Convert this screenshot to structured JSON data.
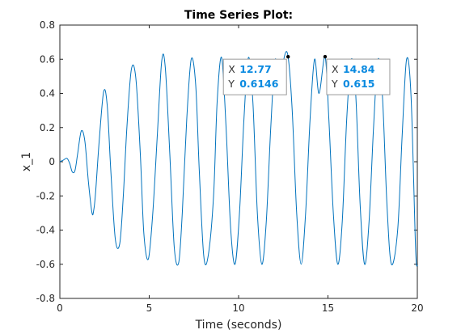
{
  "chart_data": {
    "type": "line",
    "title": "Time Series Plot:",
    "xlabel": "Time (seconds)",
    "ylabel": "x_1",
    "xlim": [
      0,
      20
    ],
    "ylim": [
      -0.8,
      0.8
    ],
    "grid": false,
    "x_ticks": [
      0,
      5,
      10,
      15,
      20
    ],
    "y_ticks": [
      -0.8,
      -0.6,
      -0.4,
      -0.2,
      0,
      0.2,
      0.4,
      0.6,
      0.8
    ],
    "series": [
      {
        "color": "#0072bd",
        "x": [
          0,
          0.2,
          0.4,
          0.55,
          0.7,
          0.85,
          1.0,
          1.2,
          1.4,
          1.6,
          1.8,
          1.9,
          2.0,
          2.2,
          2.45,
          2.65,
          2.85,
          3.1,
          3.35,
          3.55,
          3.75,
          4.0,
          4.25,
          4.5,
          4.7,
          4.95,
          5.2,
          5.45,
          5.7,
          5.9,
          6.15,
          6.4,
          6.65,
          6.85,
          7.1,
          7.35,
          7.6,
          7.8,
          8.05,
          8.3,
          8.6,
          8.8,
          9.05,
          9.3,
          9.55,
          9.8,
          10.05,
          10.3,
          10.55,
          10.8,
          11.05,
          11.3,
          11.55,
          11.8,
          12.05,
          12.3,
          12.55,
          12.77,
          13.0,
          13.25,
          13.5,
          13.75,
          14.0,
          14.25,
          14.5,
          14.84,
          15.05,
          15.3,
          15.55,
          15.8,
          16.05,
          16.3,
          16.55,
          16.8,
          17.05,
          17.3,
          17.55,
          17.8,
          18.05,
          18.3,
          18.55,
          18.9,
          19.15,
          19.4,
          19.65,
          19.9,
          20.0
        ],
        "y": [
          0,
          0.01,
          0.02,
          -0.01,
          -0.06,
          -0.05,
          0.05,
          0.18,
          0.12,
          -0.12,
          -0.3,
          -0.28,
          -0.18,
          0.12,
          0.41,
          0.33,
          -0.05,
          -0.45,
          -0.48,
          -0.2,
          0.2,
          0.54,
          0.49,
          0.05,
          -0.42,
          -0.57,
          -0.3,
          0.15,
          0.59,
          0.55,
          0.05,
          -0.5,
          -0.59,
          -0.3,
          0.25,
          0.6,
          0.45,
          -0.05,
          -0.55,
          -0.55,
          -0.2,
          0.35,
          0.61,
          0.2,
          -0.38,
          -0.6,
          -0.3,
          0.25,
          0.61,
          0.35,
          -0.3,
          -0.6,
          -0.35,
          0.2,
          0.6,
          0.4,
          0.61,
          0.6146,
          0.3,
          -0.3,
          -0.6,
          -0.3,
          0.25,
          0.6,
          0.4,
          0.615,
          0.25,
          -0.3,
          -0.6,
          -0.35,
          0.25,
          0.6,
          0.4,
          -0.25,
          -0.6,
          -0.35,
          0.2,
          0.6,
          0.38,
          -0.25,
          -0.6,
          -0.4,
          0.15,
          0.6,
          0.38,
          -0.5,
          -0.61
        ]
      }
    ],
    "datatips": [
      {
        "x_key": "X",
        "x_value": "12.77",
        "y_key": "Y",
        "y_value": "0.6146",
        "x": 12.77,
        "y": 0.6146,
        "side": "left"
      },
      {
        "x_key": "X",
        "x_value": "14.84",
        "y_key": "Y",
        "y_value": "0.615",
        "x": 14.84,
        "y": 0.615,
        "side": "right"
      }
    ]
  }
}
